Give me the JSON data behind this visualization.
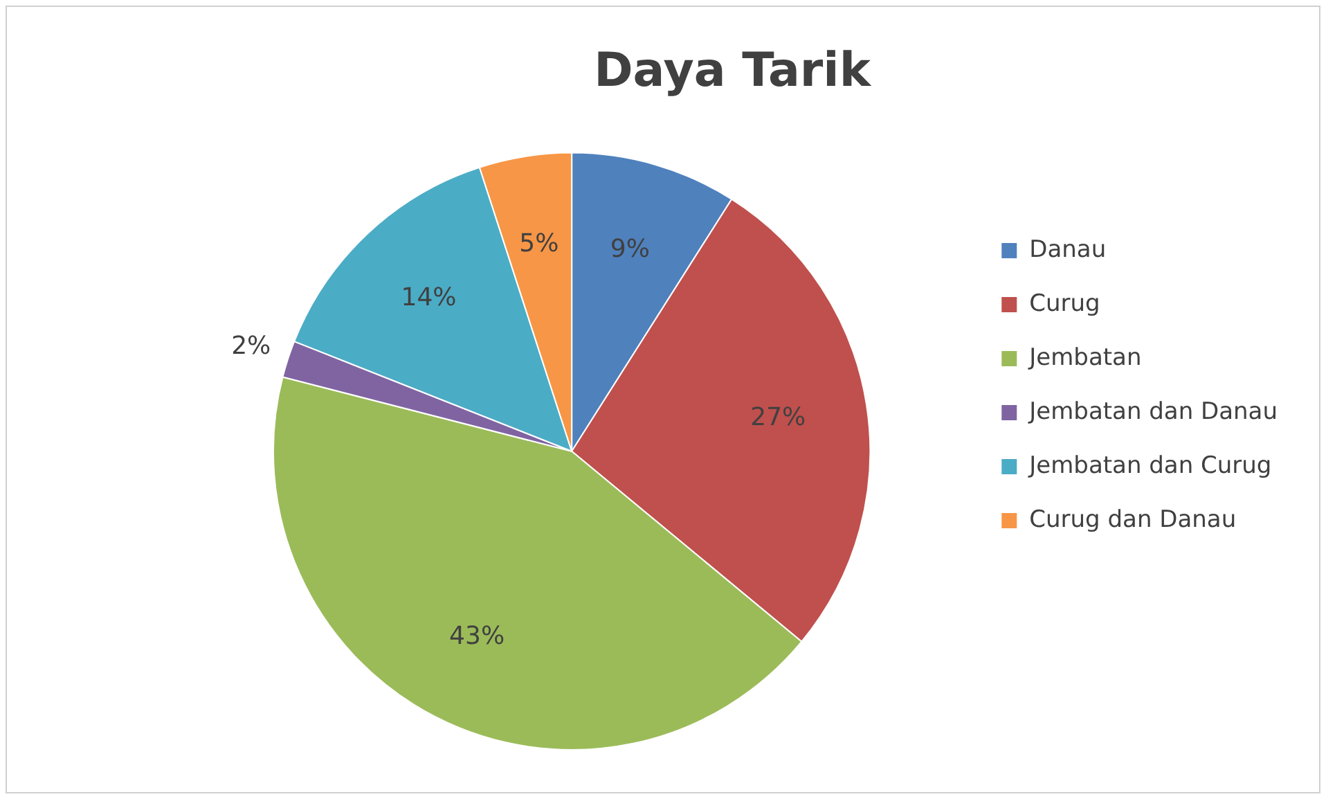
{
  "chart_data": {
    "type": "pie",
    "title": "Daya Tarik",
    "categories": [
      "Danau",
      "Curug",
      "Jembatan",
      "Jembatan dan Danau",
      "Jembatan dan Curug",
      "Curug dan Danau"
    ],
    "values": [
      9,
      27,
      43,
      2,
      14,
      5
    ],
    "colors": [
      "#4f81bd",
      "#c0504d",
      "#9bbb59",
      "#8064a2",
      "#4bacc6",
      "#f79646"
    ],
    "value_labels": [
      "9%",
      "27%",
      "43%",
      "2%",
      "14%",
      "5%"
    ],
    "legend": "right"
  }
}
